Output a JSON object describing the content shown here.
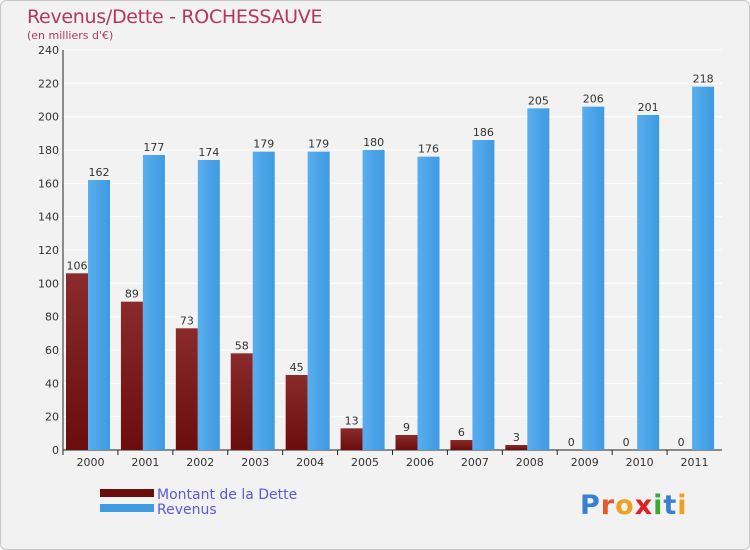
{
  "header": {
    "title": "Revenus/Dette - ROCHESSAUVE",
    "subtitle": "(en milliers d'€)"
  },
  "colors": {
    "dette": "#6b0d0d",
    "revenus": "#3f9ae0",
    "title": "#b5365f",
    "legend_text": "#5a5ad8"
  },
  "logo": {
    "text": "Proxiti",
    "letters": [
      {
        "ch": "P",
        "color": "#3a7fd0"
      },
      {
        "ch": "r",
        "color": "#e05a2a"
      },
      {
        "ch": "o",
        "color": "#f0a020"
      },
      {
        "ch": "x",
        "color": "#e02020"
      },
      {
        "ch": "i",
        "color": "#3aaa35"
      },
      {
        "ch": "t",
        "color": "#3a7fd0"
      },
      {
        "ch": "i",
        "color": "#f0a020"
      }
    ]
  },
  "chart_data": {
    "type": "bar",
    "title": "Revenus/Dette - ROCHESSAUVE",
    "ylabel": "(en milliers d'€)",
    "xlabel": "",
    "ylim": [
      0,
      240
    ],
    "yticks": [
      0,
      20,
      40,
      60,
      80,
      100,
      120,
      140,
      160,
      180,
      200,
      220,
      240
    ],
    "categories": [
      "2000",
      "2001",
      "2002",
      "2003",
      "2004",
      "2005",
      "2006",
      "2007",
      "2008",
      "2009",
      "2010",
      "2011"
    ],
    "series": [
      {
        "name": "Montant de la Dette",
        "values": [
          106,
          89,
          73,
          58,
          45,
          13,
          9,
          6,
          3,
          0,
          0,
          0
        ]
      },
      {
        "name": "Revenus",
        "values": [
          162,
          177,
          174,
          179,
          179,
          180,
          176,
          186,
          205,
          206,
          201,
          218
        ]
      }
    ],
    "grid": true,
    "legend_position": "bottom-left"
  }
}
